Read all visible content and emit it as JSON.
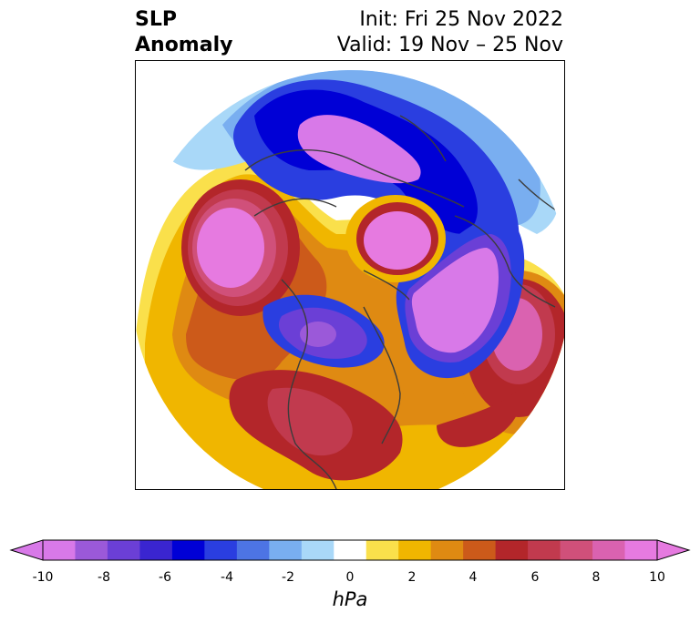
{
  "title": {
    "left_line1": "SLP",
    "left_line2": "Anomaly",
    "right_line1": "Init: Fri 25 Nov 2022",
    "right_line2": "Valid: 19 Nov – 25 Nov"
  },
  "colorbar": {
    "unit": "hPa",
    "ticks": [
      "-10",
      "-8",
      "-6",
      "-4",
      "-2",
      "0",
      "2",
      "4",
      "6",
      "8",
      "10"
    ],
    "colors": [
      "#d879e8",
      "#9b59d9",
      "#6b3fd6",
      "#3a25d0",
      "#0000d6",
      "#2a3ee0",
      "#4d74e4",
      "#79aef0",
      "#a9d8f8",
      "#ffffff",
      "#fae04b",
      "#f0b600",
      "#df8a12",
      "#cc5a1a",
      "#b3262a",
      "#c13a4e",
      "#d0507a",
      "#da62b0",
      "#e67ae0"
    ]
  },
  "map": {
    "projection": "polar-stereographic",
    "features": [
      {
        "name": "north-pacific-positive-anomaly",
        "value": 10
      },
      {
        "name": "arctic-positive-anomaly",
        "value": 10
      },
      {
        "name": "north-atlantic-positive-anomaly",
        "value": 8
      },
      {
        "name": "siberia-negative-anomaly",
        "value": -10
      },
      {
        "name": "greenland-sea-negative-anomaly",
        "value": -10
      },
      {
        "name": "canada-negative-anomaly",
        "value": -10
      }
    ]
  }
}
